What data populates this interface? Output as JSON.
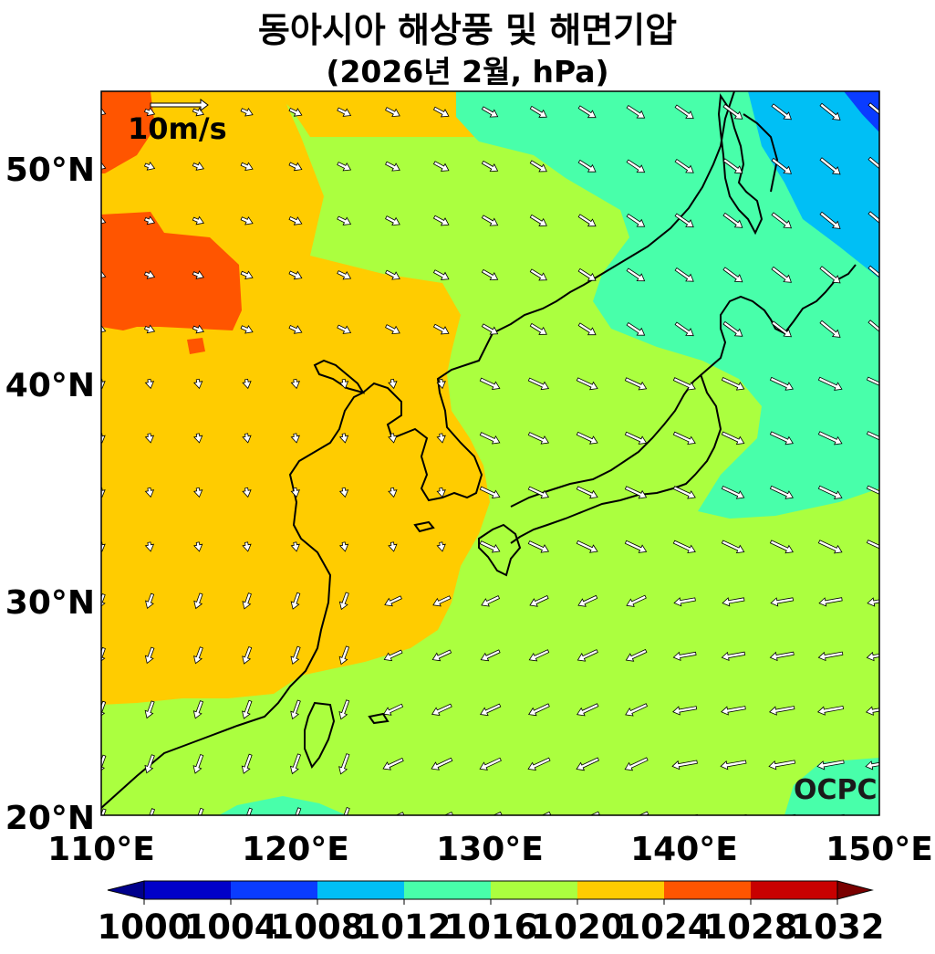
{
  "title": "동아시아 해상풍 및 해면기압",
  "subtitle": "(2026년 2월, hPa)",
  "logo_text": "OCPC",
  "wind_scale": {
    "label": "10m/s"
  },
  "x_ticks": [
    "110°E",
    "120°E",
    "130°E",
    "140°E",
    "150°E"
  ],
  "y_ticks": [
    "50°N",
    "40°N",
    "30°N",
    "20°N"
  ],
  "map_extent": {
    "lon": [
      110,
      150
    ],
    "lat": [
      20,
      53.5
    ]
  },
  "colorbar": {
    "levels": [
      "1000",
      "1004",
      "1008",
      "1012",
      "1016",
      "1020",
      "1024",
      "1028",
      "1032"
    ],
    "under_color": "#00008c",
    "over_color": "#7a0000",
    "colors": [
      "#0000c8",
      "#0a3cff",
      "#00bff5",
      "#48ffaa",
      "#abff3f",
      "#ffcc00",
      "#ff5500",
      "#c80000"
    ]
  }
}
